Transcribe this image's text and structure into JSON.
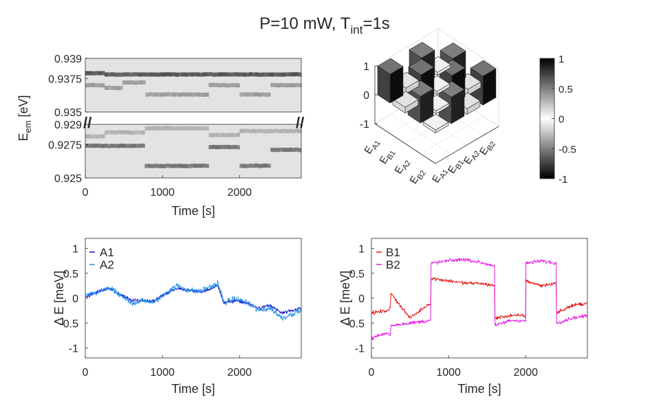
{
  "figure": {
    "title_main": "P=10 mW, T",
    "title_sub": "int",
    "title_tail": "=1s"
  },
  "colors": {
    "A1": "#0000cc",
    "A2": "#1e90e6",
    "B1": "#e60000",
    "B2": "#e600e6",
    "axis": "#262626",
    "spectrum_bg": "#e3e3e3"
  },
  "chart_data": [
    {
      "id": "spectrum",
      "type": "heatmap",
      "xlabel": "Time [s]",
      "ylabel_main": "E",
      "ylabel_sub": "em",
      "ylabel_tail": " [eV]",
      "xlim": [
        0,
        2800
      ],
      "xticks": [
        0,
        1000,
        2000
      ],
      "xtick_labels": [
        "0",
        "1000",
        "2000"
      ],
      "upper_ylim": [
        0.935,
        0.939
      ],
      "upper_yticks": [
        0.935,
        0.9375,
        0.939
      ],
      "upper_ytick_labels": [
        "0.935",
        "0.9375",
        "0.939"
      ],
      "lower_ylim": [
        0.925,
        0.929
      ],
      "lower_yticks": [
        0.925,
        0.9275,
        0.929
      ],
      "lower_ytick_labels": [
        "0.925",
        "0.9275",
        "0.929"
      ],
      "break_mark": "//",
      "lines": [
        {
          "name": "upper-strong",
          "darkness": 0.78,
          "segments": [
            [
              0,
              250,
              0.9379
            ],
            [
              250,
              2800,
              0.9378
            ]
          ]
        },
        {
          "name": "upper-weak",
          "darkness": 0.45,
          "segments": [
            [
              0,
              250,
              0.937
            ],
            [
              250,
              480,
              0.9368
            ],
            [
              480,
              780,
              0.9372
            ],
            [
              780,
              1600,
              0.9363
            ],
            [
              1600,
              2000,
              0.937
            ],
            [
              2000,
              2400,
              0.9363
            ],
            [
              2400,
              2800,
              0.937
            ]
          ]
        },
        {
          "name": "lower-A",
          "darkness": 0.65,
          "segments": [
            [
              0,
              770,
              0.9274
            ],
            [
              770,
              1600,
              0.9259
            ],
            [
              1600,
              2000,
              0.9273
            ],
            [
              2000,
              2400,
              0.9259
            ],
            [
              2400,
              2800,
              0.9271
            ]
          ]
        },
        {
          "name": "lower-B",
          "darkness": 0.35,
          "segments": [
            [
              0,
              250,
              0.9281
            ],
            [
              250,
              770,
              0.9284
            ],
            [
              770,
              1600,
              0.9287
            ],
            [
              1600,
              2000,
              0.9282
            ],
            [
              2000,
              2400,
              0.9285
            ],
            [
              2400,
              2800,
              0.9285
            ]
          ]
        }
      ]
    },
    {
      "id": "bar3d",
      "type": "bar3d",
      "zlim": [
        -1,
        1
      ],
      "zticks": [
        1,
        0,
        -1
      ],
      "ztick_labels": [
        "1",
        "0",
        "-1"
      ],
      "row_labels": [
        "A1",
        "B1",
        "A2",
        "B2"
      ],
      "col_labels": [
        "A1",
        "B1",
        "A2",
        "B2"
      ],
      "label_prefix": "E",
      "matrix": [
        [
          1.0,
          0.2,
          0.92,
          0.1
        ],
        [
          0.2,
          1.0,
          0.1,
          0.92
        ],
        [
          0.92,
          0.1,
          1.0,
          0.2
        ],
        [
          0.1,
          0.92,
          0.2,
          1.0
        ]
      ],
      "colorbar": {
        "ticks": [
          1,
          0.5,
          0,
          -0.5,
          -1
        ],
        "tick_labels": [
          "1",
          "0.5",
          "0",
          "-0.5",
          "-1"
        ]
      }
    },
    {
      "id": "A-traces",
      "type": "line",
      "xlabel": "Time [s]",
      "ylabel": "Δ E [meV]",
      "xlim": [
        0,
        2800
      ],
      "ylim": [
        -1.2,
        1.2
      ],
      "xticks": [
        0,
        1000,
        2000
      ],
      "xtick_labels": [
        "0",
        "1000",
        "2000"
      ],
      "yticks": [
        1,
        0.5,
        0,
        -0.5,
        -1
      ],
      "ytick_labels": [
        "1",
        "0.5",
        "0",
        "-0.5",
        "-1"
      ],
      "legend_position": "top-left",
      "series": [
        {
          "name": "A1",
          "noise": 0.05,
          "x": [
            0,
            150,
            300,
            450,
            600,
            750,
            900,
            1050,
            1200,
            1350,
            1500,
            1650,
            1720,
            1800,
            1950,
            2100,
            2250,
            2400,
            2550,
            2700,
            2800
          ],
          "y": [
            0.03,
            0.12,
            0.2,
            0.08,
            -0.05,
            -0.05,
            -0.05,
            0.1,
            0.2,
            0.15,
            0.12,
            0.2,
            0.25,
            -0.1,
            -0.05,
            -0.1,
            -0.2,
            -0.15,
            -0.3,
            -0.25,
            -0.2
          ]
        },
        {
          "name": "A2",
          "noise": 0.09,
          "x": [
            0,
            150,
            300,
            450,
            600,
            750,
            900,
            1050,
            1200,
            1350,
            1500,
            1650,
            1720,
            1800,
            1950,
            2100,
            2250,
            2400,
            2550,
            2700,
            2800
          ],
          "y": [
            0.05,
            0.1,
            0.22,
            0.05,
            -0.1,
            -0.05,
            -0.08,
            0.12,
            0.25,
            0.15,
            0.15,
            0.25,
            0.3,
            -0.1,
            0.0,
            -0.1,
            -0.25,
            -0.2,
            -0.4,
            -0.3,
            -0.25
          ]
        }
      ]
    },
    {
      "id": "B-traces",
      "type": "line",
      "xlabel": "Time [s]",
      "ylabel": "Δ E [meV]",
      "xlim": [
        0,
        2800
      ],
      "ylim": [
        -1.2,
        1.2
      ],
      "xticks": [
        0,
        1000,
        2000
      ],
      "xtick_labels": [
        "0",
        "1000",
        "2000"
      ],
      "yticks": [
        1,
        0.5,
        0,
        -0.5,
        -1
      ],
      "ytick_labels": [
        "1",
        "0.5",
        "0",
        "-0.5",
        "-1"
      ],
      "legend_position": "top-left",
      "series": [
        {
          "name": "B1",
          "noise": 0.05,
          "x": [
            0,
            200,
            249,
            250,
            500,
            760,
            769,
            770,
            1000,
            1200,
            1400,
            1590,
            1599,
            1600,
            1800,
            1990,
            1999,
            2000,
            2200,
            2390,
            2399,
            2400,
            2600,
            2800
          ],
          "y": [
            -0.3,
            -0.25,
            -0.2,
            0.1,
            -0.4,
            -0.1,
            -0.15,
            0.4,
            0.35,
            0.3,
            0.3,
            0.25,
            0.25,
            -0.4,
            -0.35,
            -0.35,
            -0.4,
            0.35,
            0.25,
            0.3,
            0.3,
            -0.3,
            -0.15,
            -0.1
          ]
        },
        {
          "name": "B2",
          "noise": 0.05,
          "x": [
            0,
            200,
            249,
            250,
            500,
            760,
            769,
            770,
            1000,
            1200,
            1400,
            1590,
            1599,
            1600,
            1800,
            1990,
            1999,
            2000,
            2200,
            2390,
            2399,
            2400,
            2600,
            2800
          ],
          "y": [
            -0.8,
            -0.7,
            -0.75,
            -0.55,
            -0.5,
            -0.45,
            -0.45,
            0.7,
            0.75,
            0.78,
            0.72,
            0.65,
            0.65,
            -0.55,
            -0.45,
            -0.45,
            -0.5,
            0.7,
            0.75,
            0.7,
            0.7,
            -0.5,
            -0.4,
            -0.35
          ]
        }
      ]
    }
  ]
}
